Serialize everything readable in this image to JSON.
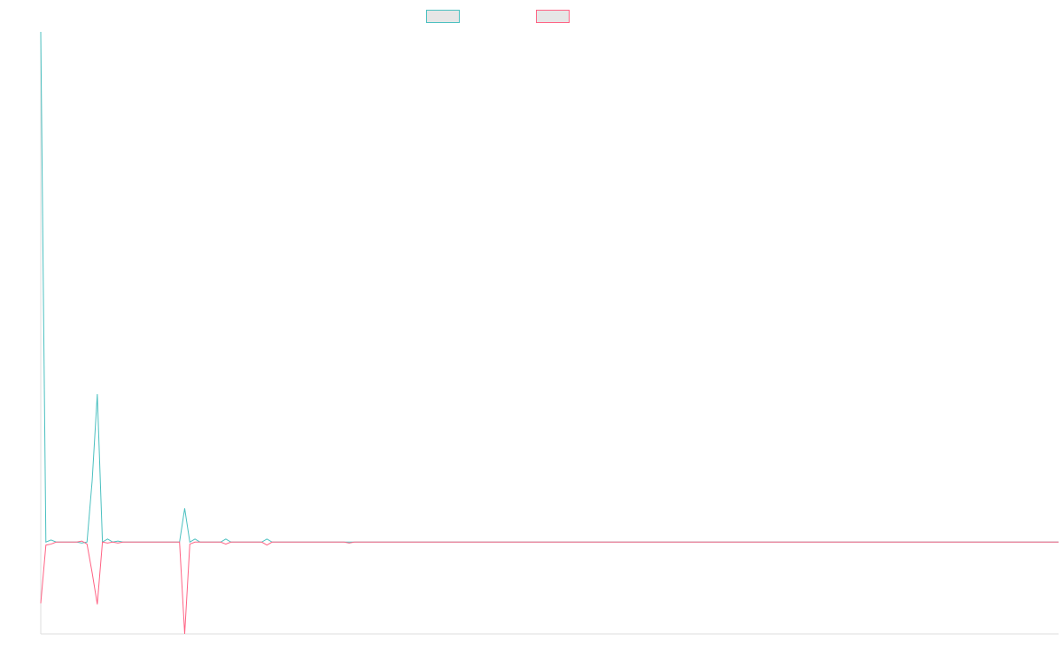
{
  "chart_data": {
    "type": "line",
    "title": "",
    "xlabel": "",
    "ylabel": "",
    "x": [
      0,
      1,
      2,
      3,
      4,
      5,
      6,
      7,
      8,
      9,
      10,
      11,
      12,
      13,
      14,
      15,
      16,
      17,
      18,
      19,
      20,
      21,
      22,
      23,
      24,
      25,
      26,
      27,
      28,
      29,
      30,
      31,
      32,
      33,
      34,
      35,
      36,
      37,
      38,
      39,
      40,
      41,
      42,
      43,
      44,
      45,
      46,
      47,
      48,
      49,
      50,
      51,
      52,
      53,
      54,
      55,
      56,
      57,
      58,
      59,
      60,
      61,
      62,
      63,
      64,
      65,
      66,
      67,
      68,
      69,
      70,
      71,
      72,
      73,
      74,
      75,
      76,
      77,
      78,
      79,
      80,
      81,
      82,
      83,
      84,
      85,
      86,
      87,
      88,
      89,
      90,
      91,
      92,
      93,
      94,
      95,
      96,
      97,
      98,
      99,
      100,
      101,
      102,
      103,
      104,
      105,
      106,
      107,
      108,
      109,
      110,
      111,
      112,
      113,
      114,
      115,
      116,
      117,
      118,
      119,
      120,
      121,
      122,
      123,
      124,
      125,
      126,
      127,
      128,
      129,
      130,
      131,
      132,
      133,
      134,
      135,
      136,
      137,
      138,
      139,
      140,
      141,
      142,
      143,
      144,
      145,
      146,
      147,
      148,
      149,
      150,
      151,
      152,
      153,
      154,
      155,
      156,
      157,
      158,
      159,
      160,
      161,
      162,
      163,
      164,
      165,
      166,
      167,
      168,
      169,
      170,
      171,
      172,
      173,
      174,
      175,
      176,
      177,
      178,
      179,
      180,
      181,
      182,
      183,
      184,
      185,
      186,
      187,
      188,
      189,
      190,
      191,
      192,
      193,
      194,
      195,
      196,
      197,
      198
    ],
    "ylim": [
      -90,
      500
    ],
    "grid": false,
    "legend_position": "top-center",
    "series": [
      {
        "color": "#4bc0c0",
        "values": [
          500,
          0,
          2,
          0,
          0,
          0,
          0,
          0,
          -1,
          0,
          60,
          145,
          0,
          3,
          0,
          1,
          0,
          0,
          0,
          0,
          0,
          0,
          0,
          0,
          0,
          0,
          0,
          0,
          33,
          0,
          3,
          0,
          0,
          0,
          0,
          0,
          3,
          0,
          0,
          0,
          0,
          0,
          0,
          0,
          3,
          0,
          0,
          0,
          0,
          0,
          0,
          0,
          0,
          0,
          0,
          0,
          0,
          0,
          0,
          0,
          0,
          0,
          0,
          0,
          0,
          0,
          0,
          0,
          0,
          0,
          0,
          0,
          0,
          0,
          0,
          0,
          0,
          0,
          0,
          0,
          0,
          0,
          0,
          0,
          0,
          0,
          0,
          0,
          0,
          0,
          0,
          0,
          0,
          0,
          0,
          0,
          0,
          0,
          0,
          0,
          0,
          0,
          0,
          0,
          0,
          0,
          0,
          0,
          0,
          0,
          0,
          0,
          0,
          0,
          0,
          0,
          0,
          0,
          0,
          0,
          0,
          0,
          0,
          0,
          0,
          0,
          0,
          0,
          0,
          0,
          0,
          0,
          0,
          0,
          0,
          0,
          0,
          0,
          0,
          0,
          0,
          0,
          0,
          0,
          0,
          0,
          0,
          0,
          0,
          0,
          0,
          0,
          0,
          0,
          0,
          0,
          0,
          0,
          0,
          0,
          0,
          0,
          0,
          0,
          0,
          0,
          0,
          0,
          0,
          0,
          0,
          0,
          0,
          0,
          0,
          0,
          0,
          0,
          0,
          0,
          0,
          0,
          0,
          0,
          0,
          0,
          0,
          0,
          0,
          0,
          0,
          0,
          0,
          0,
          0,
          0,
          0,
          0,
          0
        ]
      },
      {
        "color": "#ff6384",
        "values": [
          -60,
          -3,
          -2,
          0,
          0,
          0,
          0,
          0,
          1,
          -2,
          -30,
          -61,
          0,
          -1,
          0,
          -1,
          0,
          0,
          0,
          0,
          0,
          0,
          0,
          0,
          0,
          0,
          0,
          0,
          -90,
          -2,
          0,
          0,
          0,
          0,
          0,
          0,
          -2,
          0,
          0,
          0,
          0,
          0,
          0,
          0,
          -3,
          0,
          0,
          0,
          0,
          0,
          0,
          0,
          0,
          0,
          0,
          0,
          0,
          0,
          0,
          0,
          -1,
          0,
          0,
          0,
          0,
          0,
          0,
          0,
          0,
          0,
          0,
          0,
          0,
          0,
          0,
          0,
          0,
          0,
          0,
          0,
          0,
          0,
          0,
          0,
          0,
          0,
          0,
          0,
          0,
          0,
          0,
          0,
          0,
          0,
          0,
          0,
          0,
          0,
          0,
          0,
          0,
          0,
          0,
          0,
          0,
          0,
          0,
          0,
          0,
          0,
          0,
          0,
          0,
          0,
          0,
          0,
          0,
          0,
          0,
          0,
          0,
          0,
          0,
          0,
          0,
          0,
          0,
          0,
          0,
          0,
          0,
          0,
          0,
          0,
          0,
          0,
          0,
          0,
          0,
          0,
          0,
          0,
          0,
          0,
          0,
          0,
          0,
          0,
          0,
          0,
          0,
          0,
          0,
          0,
          0,
          0,
          0,
          0,
          0,
          0,
          0,
          0,
          0,
          0,
          0,
          0,
          0,
          0,
          0,
          0,
          0,
          0,
          0,
          0,
          0,
          0,
          0,
          0,
          0,
          0,
          0,
          0,
          0,
          0,
          0,
          0,
          0,
          0,
          0,
          0,
          0,
          0,
          0,
          0,
          0,
          0,
          0,
          0,
          0
        ]
      }
    ]
  },
  "legend": {
    "items": [
      {
        "label": "",
        "border_color": "#4bc0c0",
        "fill_color": "#e6e6e6"
      },
      {
        "label": "",
        "border_color": "#ff6384",
        "fill_color": "#e6e6e6"
      }
    ]
  },
  "colors": {
    "axis": "#dddddd",
    "background": "#ffffff"
  }
}
